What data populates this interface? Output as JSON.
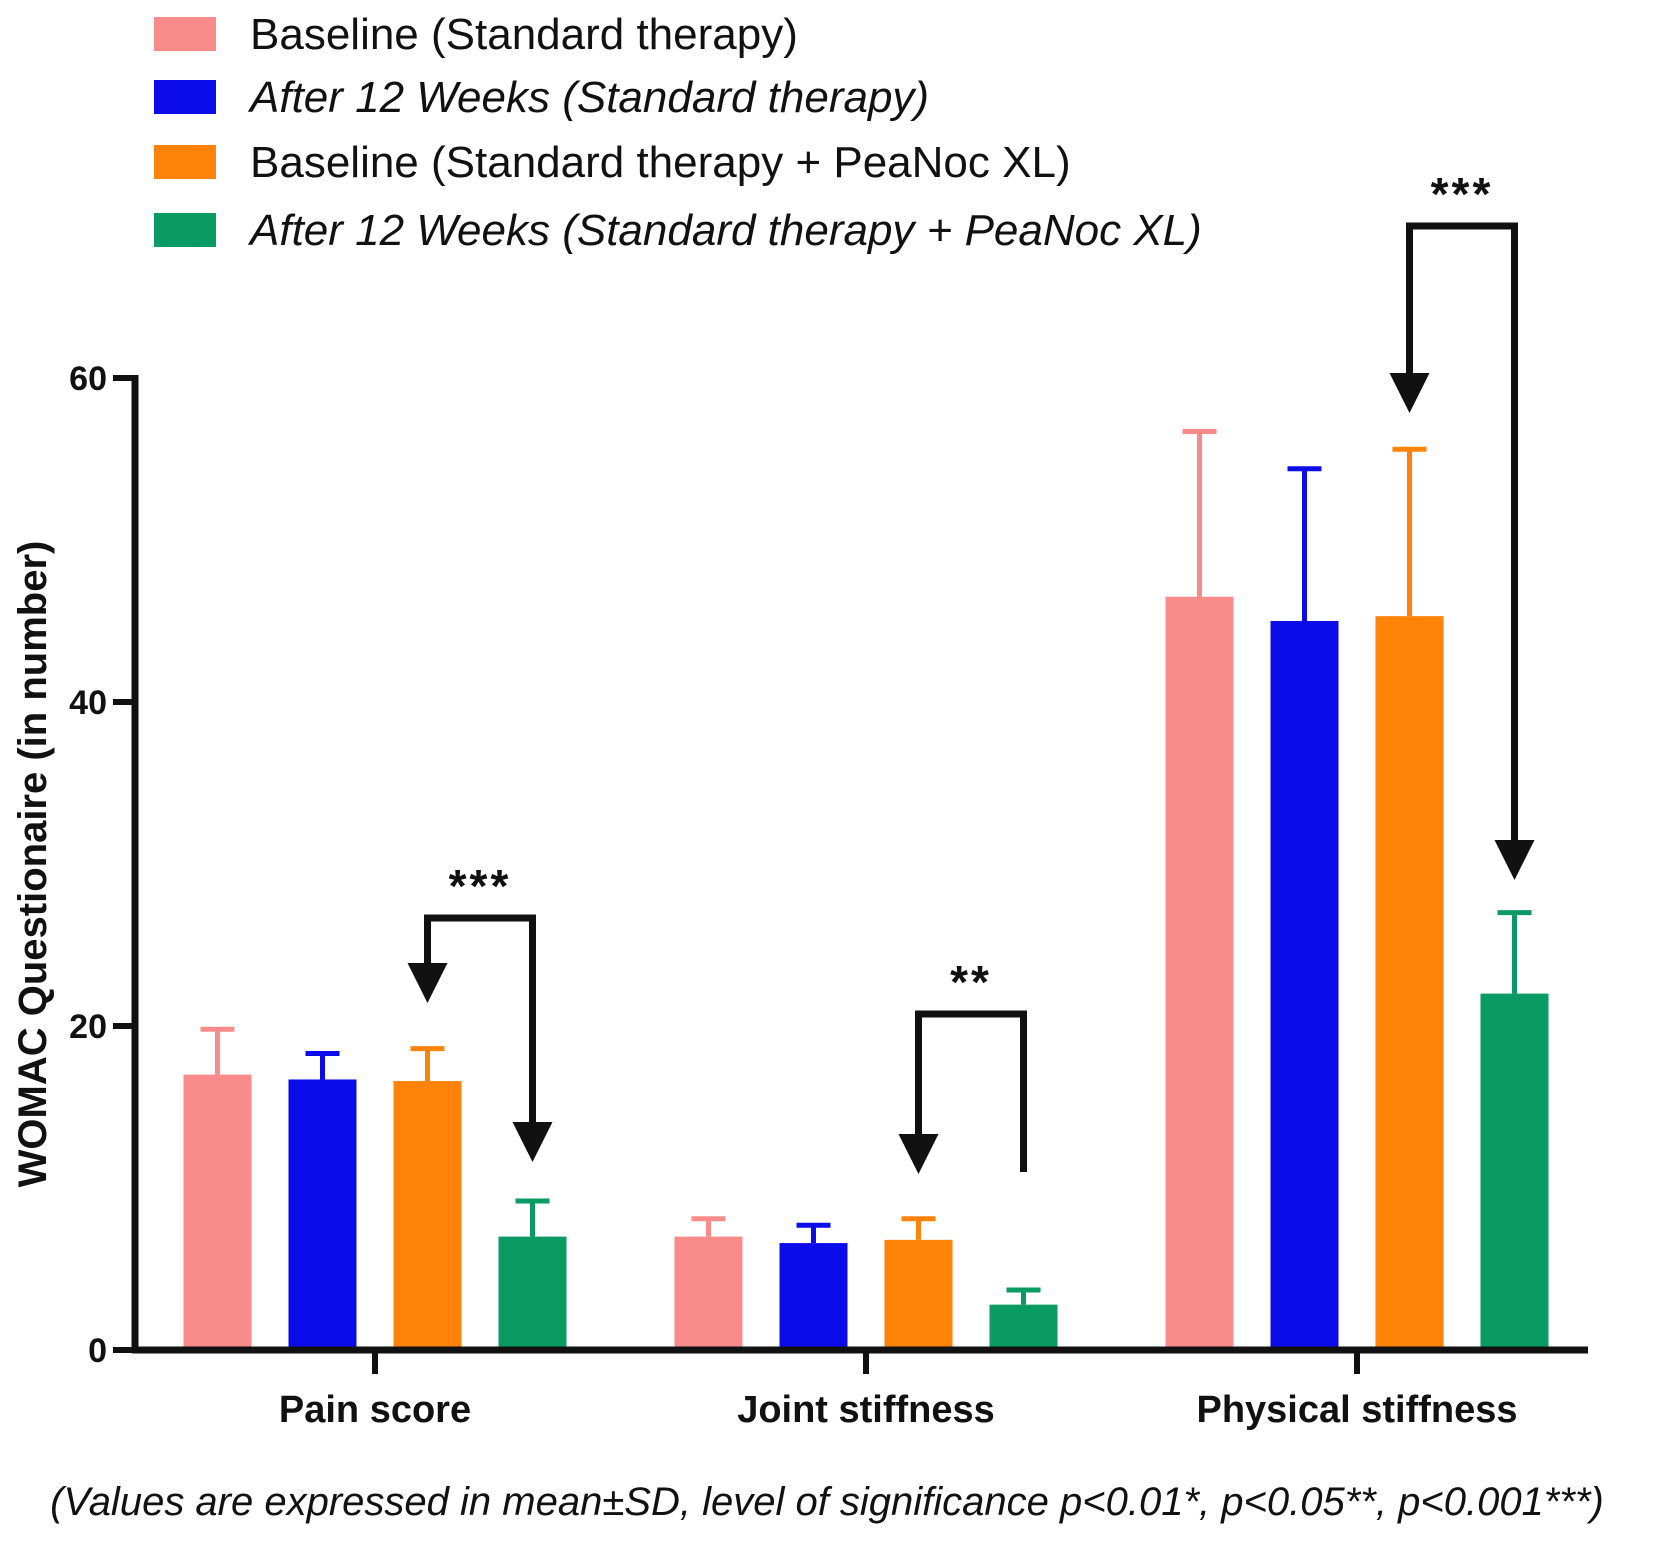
{
  "chart_data": {
    "type": "bar",
    "categories": [
      "Pain score",
      "Joint stiffness",
      "Physical stiffness"
    ],
    "series": [
      {
        "name": "Baseline (Standard therapy)",
        "italic": false,
        "color": "#F98B8B",
        "values": [
          17.0,
          7.0,
          46.5
        ],
        "sd": [
          2.8,
          1.1,
          10.2
        ]
      },
      {
        "name": "After 12 Weeks (Standard therapy)",
        "italic": true,
        "color": "#0C0CEA",
        "values": [
          16.7,
          6.6,
          45.0
        ],
        "sd": [
          1.6,
          1.1,
          9.4
        ]
      },
      {
        "name": "Baseline (Standard therapy + PeaNoc XL)",
        "italic": false,
        "color": "#FF8209",
        "values": [
          16.6,
          6.8,
          45.3
        ],
        "sd": [
          2.0,
          1.3,
          10.3
        ]
      },
      {
        "name": "After 12 Weeks (Standard therapy + PeaNoc XL)",
        "italic": true,
        "color": "#0A9A63",
        "values": [
          7.0,
          2.8,
          22.0
        ],
        "sd": [
          2.2,
          0.9,
          5.0
        ]
      }
    ],
    "significance": [
      {
        "category": "Pain score",
        "from_series": 2,
        "to_series": 3,
        "label": "***"
      },
      {
        "category": "Joint stiffness",
        "from_series": 2,
        "to_series": 3,
        "label": "**"
      },
      {
        "category": "Physical stiffness",
        "from_series": 2,
        "to_series": 3,
        "label": "***"
      }
    ],
    "title": "",
    "xlabel": "",
    "ylabel": "WOMAC Questionaire (in number)",
    "ylim": [
      0,
      60
    ],
    "yticks": [
      0,
      20,
      40,
      60
    ],
    "grid": false,
    "legend_position": "top-left",
    "footnote": "(Values are expressed in mean±SD, level of significance p<0.01*, p<0.05**, p<0.001***)"
  }
}
